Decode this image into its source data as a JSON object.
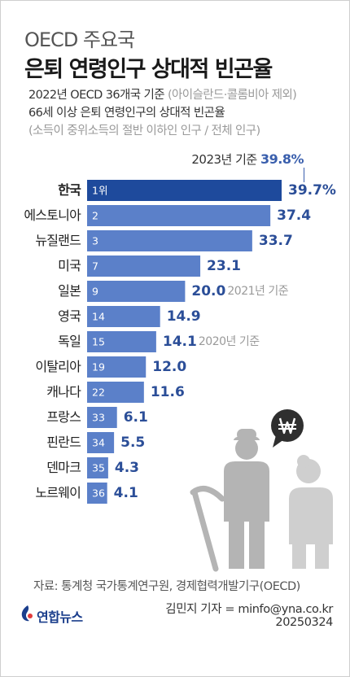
{
  "header": {
    "title_line1": "OECD 주요국",
    "title_line2": "은퇴 연령인구 상대적 빈곤율",
    "desc_line1": "2022년 OECD 36개국 기준",
    "desc_line1_note": "(아이슬란드·콜롬비아 제외)",
    "desc_line2": "66세 이상 은퇴 연령인구의 상대적 빈곤율",
    "desc_line3": "(소득이 중위소득의 절반 이하인 인구 / 전체 인구)"
  },
  "annotation_2023": {
    "label": "2023년 기준",
    "value": "39.8%"
  },
  "chart_data": {
    "type": "bar",
    "orientation": "horizontal",
    "categories": [
      "한국",
      "에스토니아",
      "뉴질랜드",
      "미국",
      "일본",
      "영국",
      "독일",
      "이탈리아",
      "캐나다",
      "프랑스",
      "핀란드",
      "덴마크",
      "노르웨이"
    ],
    "ranks": [
      "1위",
      "2",
      "3",
      "7",
      "9",
      "14",
      "15",
      "19",
      "22",
      "33",
      "34",
      "35",
      "36"
    ],
    "values": [
      39.7,
      37.4,
      33.7,
      23.1,
      20.0,
      14.9,
      14.1,
      12.0,
      11.6,
      6.1,
      5.5,
      4.3,
      4.1
    ],
    "value_labels": [
      "39.7%",
      "37.4",
      "33.7",
      "23.1",
      "20.0",
      "14.9",
      "14.1",
      "12.0",
      "11.6",
      "6.1",
      "5.5",
      "4.3",
      "4.1"
    ],
    "notes": [
      "",
      "",
      "",
      "",
      "2021년 기준",
      "",
      "2020년 기준",
      "",
      "",
      "",
      "",
      "",
      ""
    ],
    "highlight_index": 0,
    "colors": {
      "highlight": "#1e4a9c",
      "bar": "#5b80c9",
      "value_text": "#2b4e98",
      "note_text": "#9a9a9a"
    }
  },
  "icons": {
    "illustration": "elderly-couple-icon",
    "bubble": "won-speech-bubble-icon",
    "logo": "yonhap-logo-icon"
  },
  "footer": {
    "source": "자료: 통계청 국가통계연구원, 경제협력개발기구(OECD)",
    "logo_text": "연합뉴스",
    "reporter": "김민지 기자 = minfo@yna.co.kr",
    "date": "20250324"
  }
}
